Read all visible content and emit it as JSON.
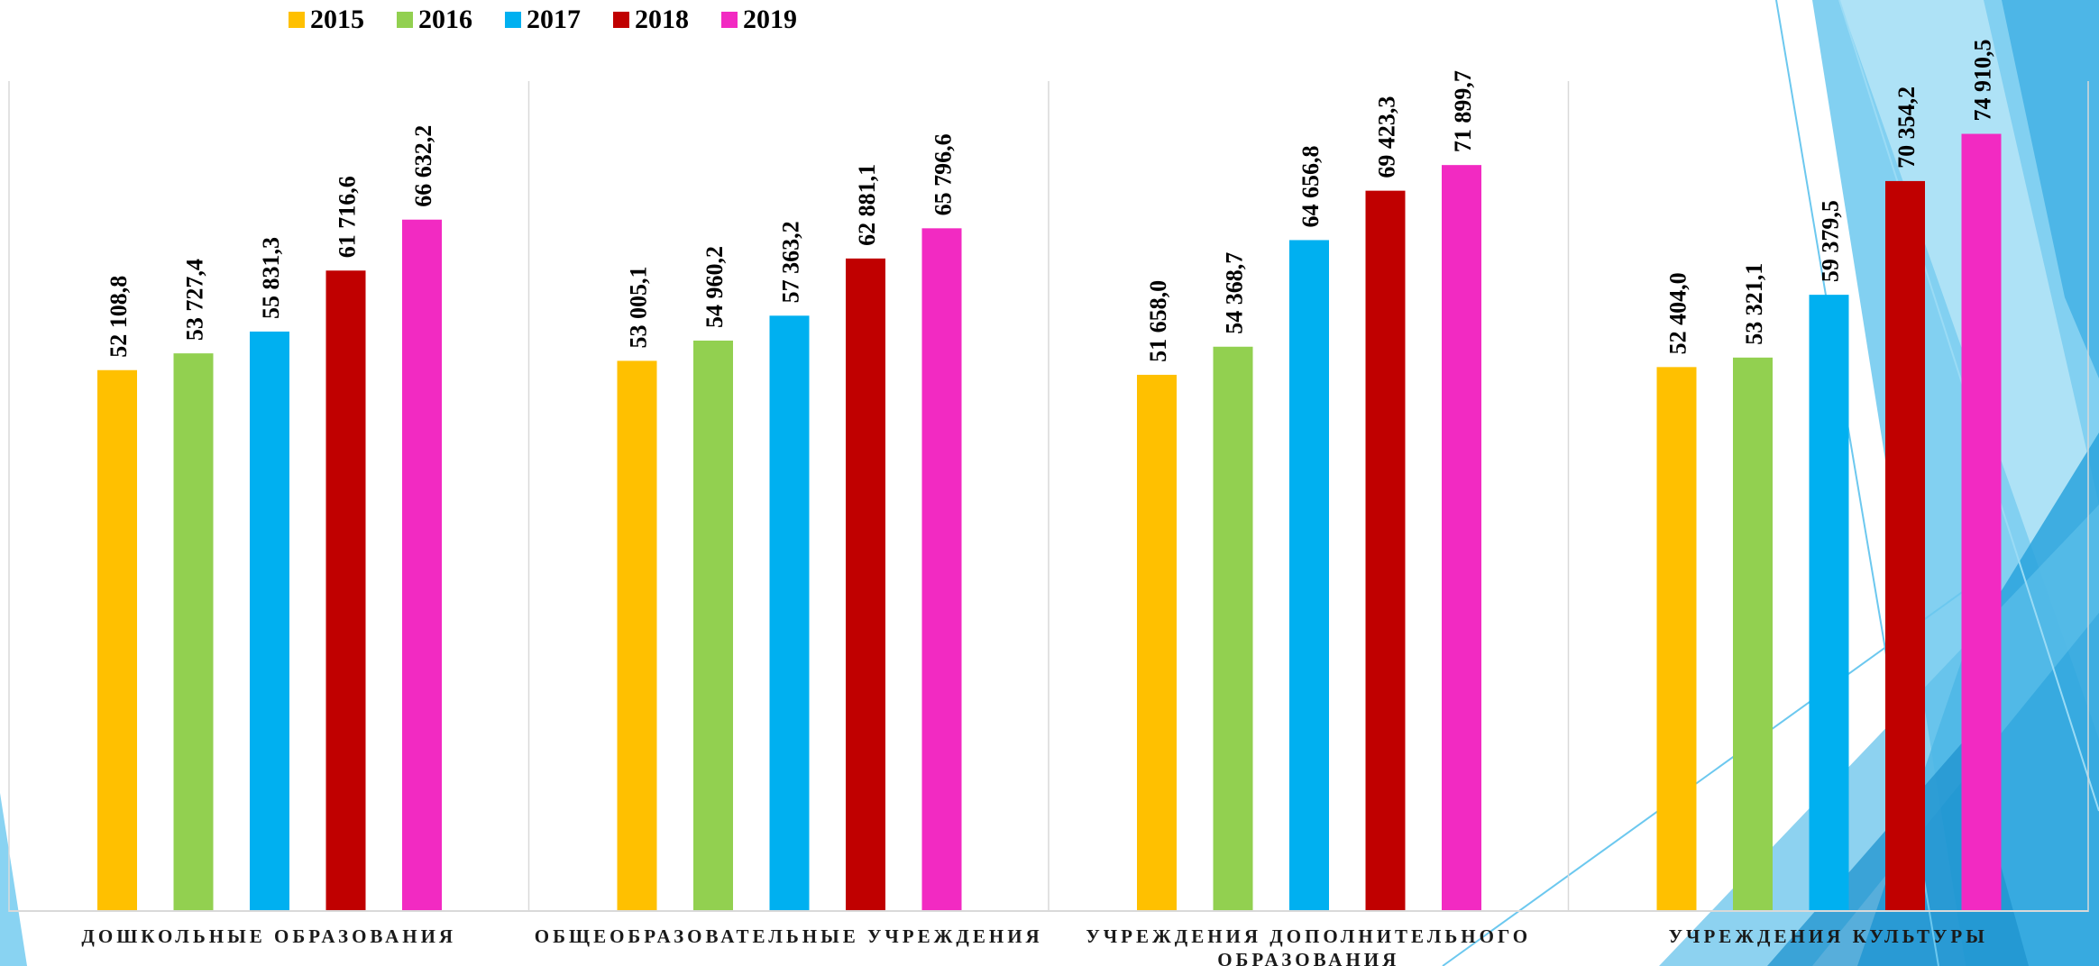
{
  "chart_data": {
    "type": "bar",
    "categories": [
      "ДОШКОЛЬНЫЕ ОБРАЗОВАНИЯ",
      "ОБЩЕОБРАЗОВАТЕЛЬНЫЕ УЧРЕЖДЕНИЯ",
      "УЧРЕЖДЕНИЯ ДОПОЛНИТЕЛЬНОГО ОБРАЗОВАНИЯ",
      "УЧРЕЖДЕНИЯ КУЛЬТУРЫ"
    ],
    "series": [
      {
        "name": "2015",
        "color": "#FFC000",
        "values": [
          52108.8,
          53005.1,
          51658.0,
          52404.0
        ],
        "labels": [
          "52 108,8",
          "53 005,1",
          "51 658,0",
          "52 404,0"
        ]
      },
      {
        "name": "2016",
        "color": "#92D050",
        "values": [
          53727.4,
          54960.2,
          54368.7,
          53321.1
        ],
        "labels": [
          "53 727,4",
          "54 960,2",
          "54 368,7",
          "53 321,1"
        ]
      },
      {
        "name": "2017",
        "color": "#00B0F0",
        "values": [
          55831.3,
          57363.2,
          64656.8,
          59379.5
        ],
        "labels": [
          "55 831,3",
          "57 363,2",
          "64 656,8",
          "59 379,5"
        ]
      },
      {
        "name": "2018",
        "color": "#C00000",
        "values": [
          61716.6,
          62881.1,
          69423.3,
          70354.2
        ],
        "labels": [
          "61 716,6",
          "62 881,1",
          "69 423,3",
          "70 354,2"
        ]
      },
      {
        "name": "2019",
        "color": "#F22AC2",
        "values": [
          66632.2,
          65796.6,
          71899.7,
          74910.5
        ],
        "labels": [
          "66 632,2",
          "65 796,6",
          "71 899,7",
          "74 910,5"
        ]
      }
    ],
    "title": "",
    "xlabel": "",
    "ylabel": "",
    "ylim": [
      0,
      80000
    ],
    "grid": false,
    "legend_position": "top-left"
  }
}
